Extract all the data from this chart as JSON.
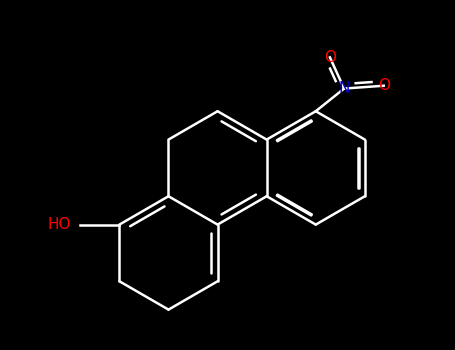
{
  "background_color": "#000000",
  "fig_width": 4.55,
  "fig_height": 3.5,
  "dpi": 100,
  "bond_color": "#ffffff",
  "bond_lw": 1.8,
  "atom_O_color": "#ff0000",
  "atom_N_color": "#0000cc",
  "atom_O2_color": "#ff0000",
  "ho_label": "HO",
  "no2_N_label": "N",
  "no2_O1_label": "O",
  "no2_O2_label": "O",
  "font_size_label": 11
}
